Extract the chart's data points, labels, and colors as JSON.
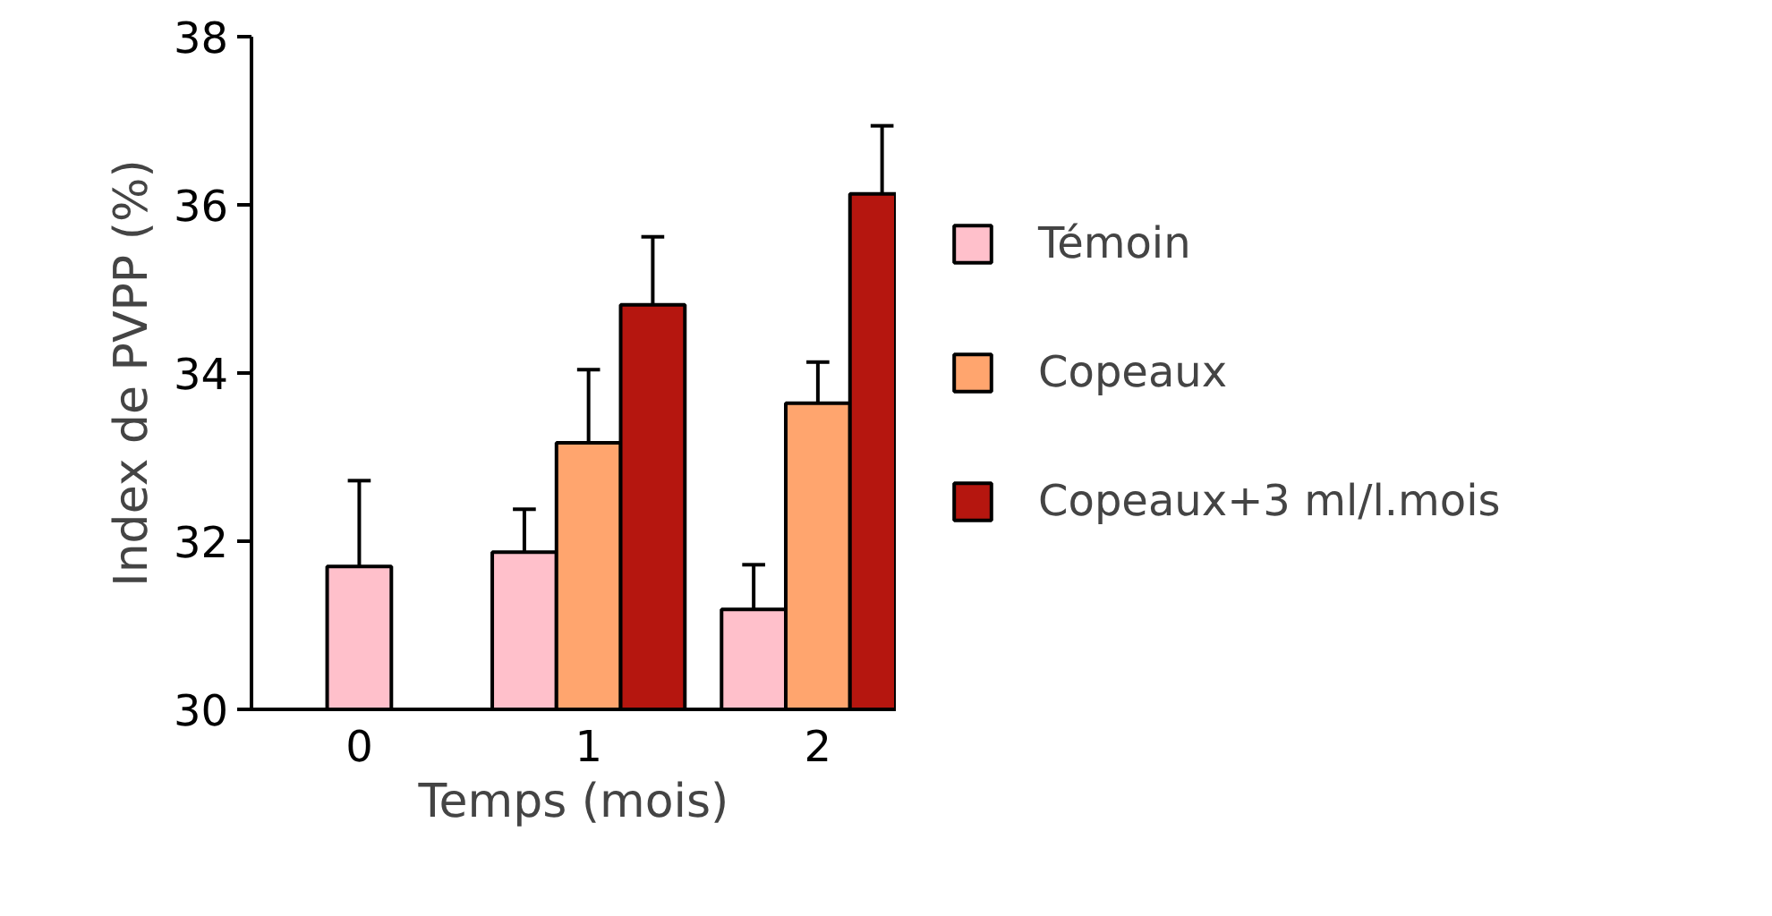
{
  "chart_data": {
    "type": "bar",
    "xlabel": "Temps (mois)",
    "ylabel": "Index de PVPP (%)",
    "categories": [
      "0",
      "1",
      "2"
    ],
    "series": [
      {
        "name": "Témoin",
        "color": "#ffc0cb",
        "values": [
          31.7,
          31.87,
          31.19
        ],
        "errors": [
          [
            31.7,
            32.72
          ],
          [
            31.87,
            32.38
          ],
          [
            31.19,
            31.72
          ]
        ]
      },
      {
        "name": "Copeaux",
        "color": "#ffa56e",
        "values": [
          null,
          33.17,
          33.64
        ],
        "errors": [
          null,
          [
            33.17,
            34.04
          ],
          [
            33.64,
            34.13
          ]
        ]
      },
      {
        "name": "Copeaux+3 ml/l.mois",
        "color": "#b5160f",
        "values": [
          null,
          34.81,
          36.13
        ],
        "errors": [
          null,
          [
            34.81,
            35.62
          ],
          [
            36.13,
            36.94
          ]
        ]
      }
    ],
    "ylim": [
      30,
      38
    ],
    "yticks": [
      30,
      32,
      34,
      36,
      38
    ],
    "grid": false,
    "legend": "right"
  }
}
